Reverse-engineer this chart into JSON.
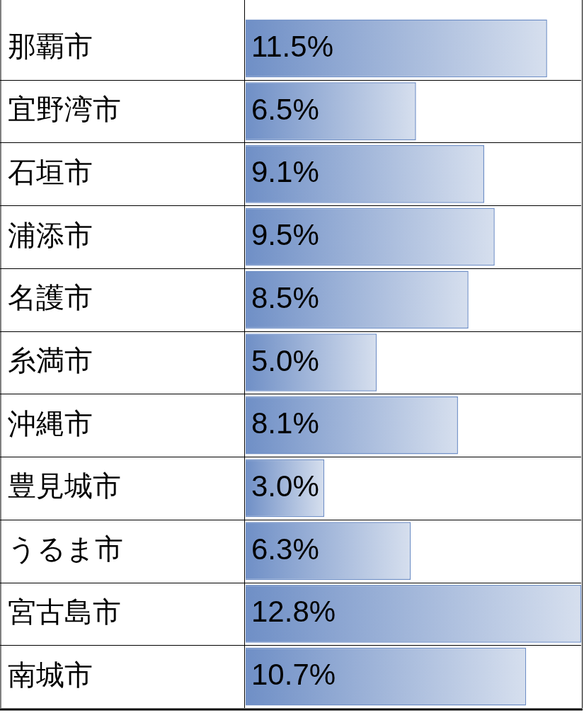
{
  "chart_data": {
    "type": "bar",
    "orientation": "horizontal",
    "categories": [
      "那覇市",
      "宜野湾市",
      "石垣市",
      "浦添市",
      "名護市",
      "糸満市",
      "沖縄市",
      "豊見城市",
      "うるま市",
      "宮古島市",
      "南城市"
    ],
    "values": [
      11.5,
      6.5,
      9.1,
      9.5,
      8.5,
      5.0,
      8.1,
      3.0,
      6.3,
      12.8,
      10.7
    ],
    "value_labels": [
      "11.5%",
      "6.5%",
      "9.1%",
      "9.5%",
      "8.5%",
      "5.0%",
      "8.1%",
      "3.0%",
      "6.3%",
      "12.8%",
      "10.7%"
    ],
    "color": "#6f8fc6"
  }
}
